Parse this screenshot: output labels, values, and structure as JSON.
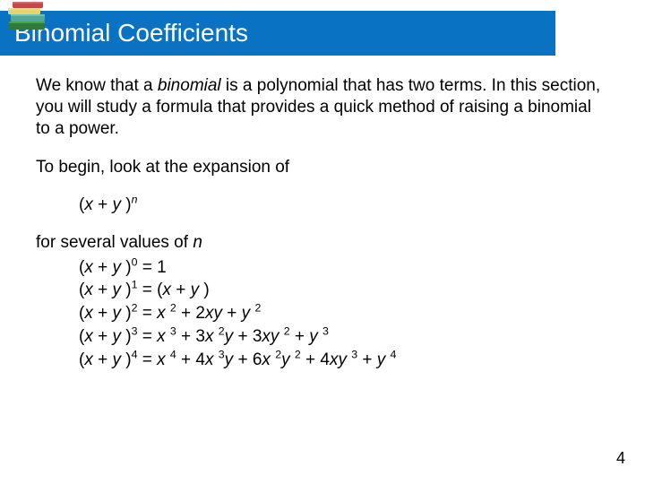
{
  "header": {
    "title": "Binomial Coefficients",
    "bar_color": "#0a72c2",
    "title_color": "#ffffff",
    "title_fontsize": 28
  },
  "books_icon": {
    "colors": {
      "green": "#2f7a3a",
      "teal": "#4fa99a",
      "yellow": "#e8d36a",
      "red": "#c44a4a"
    }
  },
  "body_text": {
    "para1_pre": "We know that a ",
    "para1_binomial": "binomial",
    "para1_post": " is a polynomial that has two terms. In this section, you will study a formula that provides a quick method of raising a binomial to a power.",
    "para2": "To begin, look at the expansion of",
    "expr_xy_n": "(x + y)",
    "expr_xy_n_sup": "n",
    "para3_pre": "for several values of ",
    "para3_n": "n"
  },
  "expansions": [
    {
      "lhs_base": "(x + y)",
      "lhs_exp": "0",
      "rhs_html": "1"
    },
    {
      "lhs_base": "(x + y)",
      "lhs_exp": "1",
      "rhs_html": "(<span class=\"italic\">x</span> + <span class=\"italic\">y</span> )"
    },
    {
      "lhs_base": "(x + y)",
      "lhs_exp": "2",
      "rhs_html": "<span class=\"italic\">x</span> <sup>2</sup> + 2<span class=\"italic\">xy</span> + <span class=\"italic\">y</span> <sup>2</sup>"
    },
    {
      "lhs_base": "(x + y)",
      "lhs_exp": "3",
      "rhs_html": "<span class=\"italic\">x</span> <sup>3</sup> + 3<span class=\"italic\">x</span> <sup>2</sup><span class=\"italic\">y</span> + 3<span class=\"italic\">xy</span> <sup>2</sup> + <span class=\"italic\">y</span> <sup>3</sup>"
    },
    {
      "lhs_base": "(x + y)",
      "lhs_exp": "4",
      "rhs_html": "<span class=\"italic\">x</span> <sup>4</sup> + 4<span class=\"italic\">x</span> <sup>3</sup><span class=\"italic\">y</span> + 6<span class=\"italic\">x</span> <sup>2</sup><span class=\"italic\">y</span> <sup>2</sup> + 4<span class=\"italic\">xy</span> <sup>3</sup> + <span class=\"italic\">y</span> <sup>4</sup>"
    }
  ],
  "page_number": "4",
  "body_fontsize": 19,
  "text_color": "#000000"
}
